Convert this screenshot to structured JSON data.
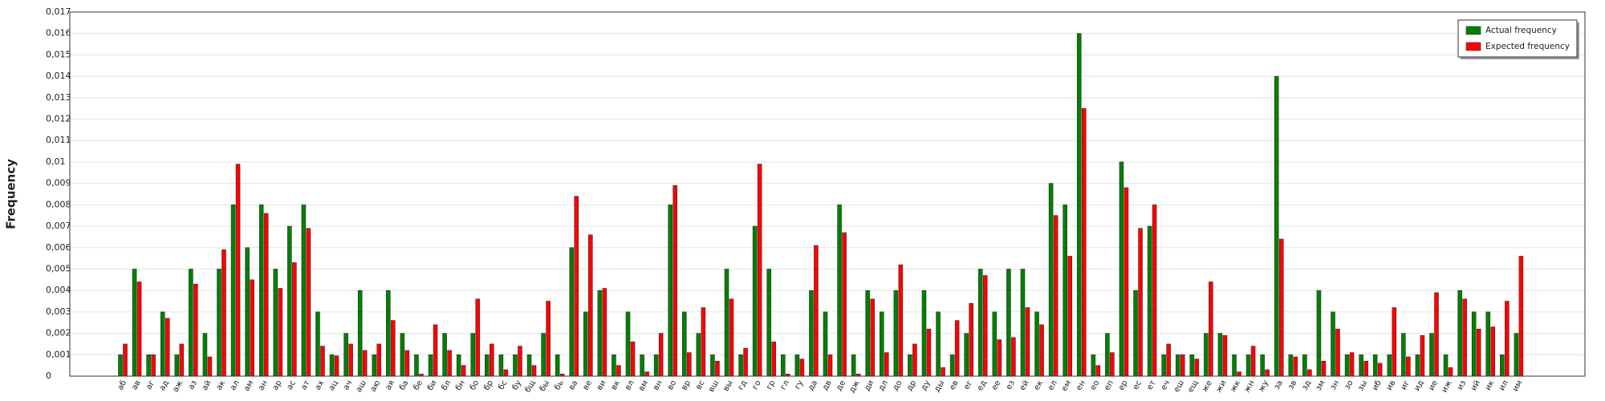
{
  "chart_data": {
    "type": "bar",
    "y_label": "Frequency",
    "categories": [
      "аб",
      "ав",
      "аг",
      "ад",
      "аж",
      "аз",
      "ай",
      "ак",
      "ал",
      "ам",
      "ан",
      "ар",
      "ас",
      "ат",
      "ах",
      "ац",
      "ач",
      "аш",
      "аю",
      "ая",
      "ба",
      "бе",
      "би",
      "бл",
      "бн",
      "бо",
      "бр",
      "бс",
      "бу",
      "бщ",
      "бы",
      "бь",
      "ва",
      "ве",
      "ви",
      "вк",
      "вл",
      "вм",
      "вн",
      "во",
      "вр",
      "вс",
      "вш",
      "вы",
      "гд",
      "го",
      "гр",
      "гл",
      "гу",
      "да",
      "дв",
      "де",
      "дж",
      "ди",
      "дл",
      "до",
      "др",
      "ду",
      "ды",
      "ев",
      "ег",
      "ед",
      "ее",
      "ез",
      "ей",
      "ек",
      "ел",
      "ем",
      "ен",
      "ео",
      "еп",
      "ер",
      "ес",
      "ет",
      "еч",
      "еш",
      "ещ",
      "же",
      "жи",
      "жк",
      "жн",
      "жу",
      "за",
      "зв",
      "зд",
      "зм",
      "зн",
      "зо",
      "зы",
      "иб",
      "ив",
      "иг",
      "ид",
      "ие",
      "иж",
      "из",
      "ий",
      "ик",
      "ил",
      "им"
    ],
    "series": [
      {
        "name": "Actual frequency",
        "color": "#008000",
        "values": [
          0.001,
          0.005,
          0.001,
          0.003,
          0.001,
          0.005,
          0.002,
          0.005,
          0.008,
          0.006,
          0.008,
          0.005,
          0.007,
          0.008,
          0.003,
          0.001,
          0.002,
          0.004,
          0.001,
          0.004,
          0.002,
          0.001,
          0.001,
          0.002,
          0.001,
          0.002,
          0.001,
          0.001,
          0.001,
          0.001,
          0.002,
          0.001,
          0.006,
          0.003,
          0.004,
          0.001,
          0.003,
          0.001,
          0.001,
          0.008,
          0.003,
          0.002,
          0.001,
          0.005,
          0.001,
          0.007,
          0.005,
          0.001,
          0.001,
          0.004,
          0.003,
          0.008,
          0.001,
          0.004,
          0.003,
          0.004,
          0.001,
          0.004,
          0.003,
          0.001,
          0.002,
          0.005,
          0.003,
          0.005,
          0.005,
          0.003,
          0.009,
          0.008,
          0.016,
          0.001,
          0.002,
          0.01,
          0.004,
          0.007,
          0.001,
          0.001,
          0.001,
          0.002,
          0.002,
          0.001,
          0.001,
          0.001,
          0.014,
          0.001,
          0.001,
          0.004,
          0.003,
          0.001,
          0.001,
          0.001,
          0.001,
          0.002,
          0.001,
          0.002,
          0.001,
          0.004,
          0.003,
          0.003,
          0.001,
          0.002
        ]
      },
      {
        "name": "Expected frequency",
        "color": "#ff0000",
        "values": [
          0.0015,
          0.0044,
          0.001,
          0.0027,
          0.0015,
          0.0043,
          0.0009,
          0.0059,
          0.0099,
          0.0045,
          0.0076,
          0.0041,
          0.0053,
          0.0069,
          0.0014,
          0.00095,
          0.0015,
          0.0012,
          0.0015,
          0.0026,
          0.0012,
          0.0001,
          0.0024,
          0.0012,
          0.0005,
          0.0036,
          0.0015,
          0.0003,
          0.0014,
          0.0005,
          0.0035,
          0.0001,
          0.0084,
          0.0066,
          0.0041,
          0.0005,
          0.0016,
          0.0002,
          0.002,
          0.0089,
          0.0011,
          0.0032,
          0.0007,
          0.0036,
          0.0013,
          0.0099,
          0.0016,
          0.0001,
          0.0008,
          0.0061,
          0.001,
          0.0067,
          0.0001,
          0.0036,
          0.0011,
          0.0052,
          0.0015,
          0.0022,
          0.0004,
          0.0026,
          0.0034,
          0.0047,
          0.0017,
          0.0018,
          0.0032,
          0.0024,
          0.0075,
          0.0056,
          0.0125,
          0.0005,
          0.0011,
          0.0088,
          0.0069,
          0.008,
          0.0015,
          0.001,
          0.0008,
          0.0044,
          0.0019,
          0.0002,
          0.0014,
          0.0003,
          0.0064,
          0.0009,
          0.0003,
          0.0007,
          0.0022,
          0.0011,
          0.0007,
          0.0006,
          0.0032,
          0.0009,
          0.0019,
          0.0039,
          0.0004,
          0.0036,
          0.0022,
          0.0023,
          0.0035,
          0.0056
        ]
      }
    ],
    "ylim": [
      0,
      0.017
    ],
    "yticks": [
      0,
      {
        "value": 0.001,
        "label": "0,001"
      },
      {
        "value": 0.002,
        "label": "0,002"
      },
      {
        "value": 0.003,
        "label": "0,003"
      },
      {
        "value": 0.004,
        "label": "0,004"
      },
      {
        "value": 0.005,
        "label": "0,005"
      },
      {
        "value": 0.006,
        "label": "0,006"
      },
      {
        "value": 0.007,
        "label": "0,007"
      },
      {
        "value": 0.008,
        "label": "0,008"
      },
      {
        "value": 0.009,
        "label": "0,009"
      },
      {
        "value": 0.01,
        "label": "0,01"
      },
      {
        "value": 0.011,
        "label": "0,011"
      },
      {
        "value": 0.012,
        "label": "0,012"
      },
      {
        "value": 0.013,
        "label": "0,013"
      },
      {
        "value": 0.014,
        "label": "0,014"
      },
      {
        "value": 0.015,
        "label": "0,015"
      },
      {
        "value": 0.016,
        "label": "0,016"
      },
      {
        "value": 0.017,
        "label": "0,017"
      }
    ],
    "grid": true,
    "legend": "top-right"
  }
}
